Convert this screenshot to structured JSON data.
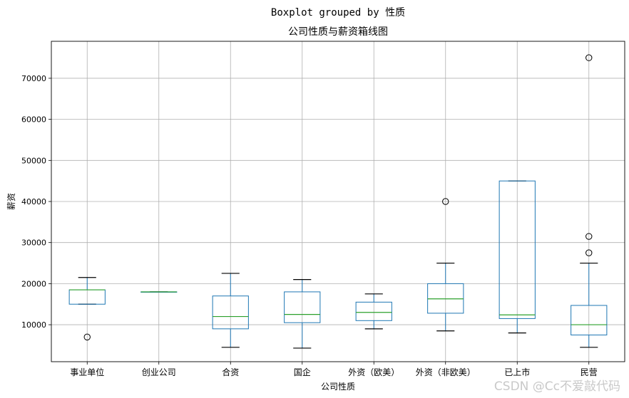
{
  "chart_data": {
    "type": "boxplot",
    "suptitle": "Boxplot grouped by 性质",
    "title": "公司性质与薪资箱线图",
    "xlabel": "公司性质",
    "ylabel": "薪资",
    "ylim": [
      1000,
      79000
    ],
    "yticks": [
      10000,
      20000,
      30000,
      40000,
      50000,
      60000,
      70000
    ],
    "grid": true,
    "box_color": "#1f77b4",
    "median_color": "#2ca02c",
    "categories": [
      "事业单位",
      "创业公司",
      "合资",
      "国企",
      "外资（欧美）",
      "外资（非欧美）",
      "已上市",
      "民营"
    ],
    "boxes": [
      {
        "label": "事业单位",
        "whislo": 15000,
        "q1": 15000,
        "med": 18500,
        "q3": 18500,
        "whishi": 21500,
        "fliers": [
          7000
        ]
      },
      {
        "label": "创业公司",
        "whislo": 18000,
        "q1": 18000,
        "med": 18000,
        "q3": 18000,
        "whishi": 18000,
        "fliers": []
      },
      {
        "label": "合资",
        "whislo": 4500,
        "q1": 9000,
        "med": 12000,
        "q3": 17000,
        "whishi": 22500,
        "fliers": []
      },
      {
        "label": "国企",
        "whislo": 4300,
        "q1": 10500,
        "med": 12500,
        "q3": 18000,
        "whishi": 21000,
        "fliers": []
      },
      {
        "label": "外资（欧美）",
        "whislo": 9000,
        "q1": 11000,
        "med": 13000,
        "q3": 15500,
        "whishi": 17500,
        "fliers": []
      },
      {
        "label": "外资（非欧美）",
        "whislo": 8500,
        "q1": 12800,
        "med": 16300,
        "q3": 20000,
        "whishi": 25000,
        "fliers": [
          40000
        ]
      },
      {
        "label": "已上市",
        "whislo": 8000,
        "q1": 11500,
        "med": 12400,
        "q3": 45000,
        "whishi": 45000,
        "fliers": []
      },
      {
        "label": "民营",
        "whislo": 4500,
        "q1": 7500,
        "med": 10000,
        "q3": 14700,
        "whishi": 25000,
        "fliers": [
          27500,
          31500,
          75000
        ]
      }
    ]
  },
  "watermark": "CSDN @Cc不爱敲代码"
}
